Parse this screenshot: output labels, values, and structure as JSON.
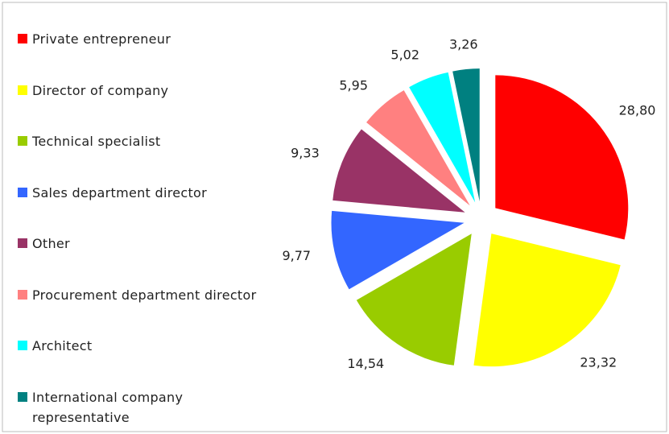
{
  "chart_data": {
    "type": "pie",
    "categories": [
      "Private entrepreneur",
      "Director of company",
      "Technical specialist",
      "Sales department director",
      "Other",
      "Procurement department director",
      "Architect",
      "International company representative"
    ],
    "values": [
      28.8,
      23.32,
      14.54,
      9.77,
      9.33,
      5.95,
      5.02,
      3.26
    ],
    "value_labels": [
      "28,80",
      "23,32",
      "14,54",
      "9,77",
      "9,33",
      "5,95",
      "5,02",
      "3,26"
    ],
    "colors": [
      "#ff0000",
      "#ffff00",
      "#99cc00",
      "#3366ff",
      "#993366",
      "#ff8080",
      "#00ffff",
      "#008080"
    ],
    "legend": "left"
  }
}
